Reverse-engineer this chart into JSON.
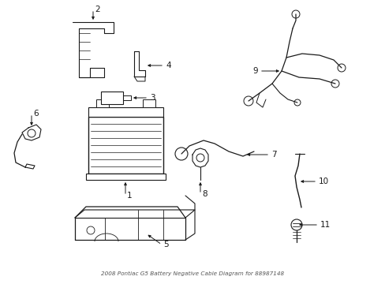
{
  "background_color": "#ffffff",
  "line_color": "#1a1a1a",
  "label_color": "#000000",
  "title": "2008 Pontiac G5 Battery Negative Cable Diagram for 88987148",
  "figsize": [
    4.89,
    3.6
  ],
  "dpi": 100
}
